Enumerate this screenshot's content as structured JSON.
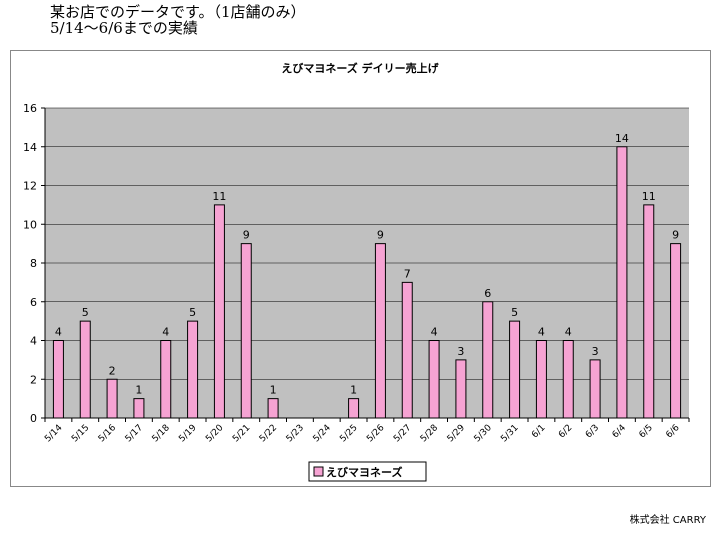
{
  "heading": {
    "line1": "某お店でのデータです。（1店舗のみ）",
    "line2": "5/14〜6/6までの実績"
  },
  "chart_data": {
    "type": "bar",
    "title": "えびマヨネーズ デイリー売上げ",
    "categories": [
      "5/14",
      "5/15",
      "5/16",
      "5/17",
      "5/18",
      "5/19",
      "5/20",
      "5/21",
      "5/22",
      "5/23",
      "5/24",
      "5/25",
      "5/26",
      "5/27",
      "5/28",
      "5/29",
      "5/30",
      "5/31",
      "6/1",
      "6/2",
      "6/3",
      "6/4",
      "6/5",
      "6/6"
    ],
    "series": [
      {
        "name": "えびマヨネーズ",
        "values": [
          4,
          5,
          2,
          1,
          4,
          5,
          11,
          9,
          1,
          0,
          0,
          1,
          9,
          7,
          4,
          3,
          6,
          5,
          4,
          4,
          3,
          14,
          11,
          9
        ]
      }
    ],
    "ylim": [
      0,
      16
    ],
    "yticks": [
      "0",
      "2",
      "4",
      "6",
      "8",
      "10",
      "12",
      "14",
      "16"
    ],
    "grid": true,
    "legend": "bottom",
    "colors": {
      "bar": "#f6a3d3",
      "plot_bg": "#c0c0c0",
      "bar_border": "#000000"
    }
  },
  "footer": {
    "company": "株式会社 CARRY"
  }
}
